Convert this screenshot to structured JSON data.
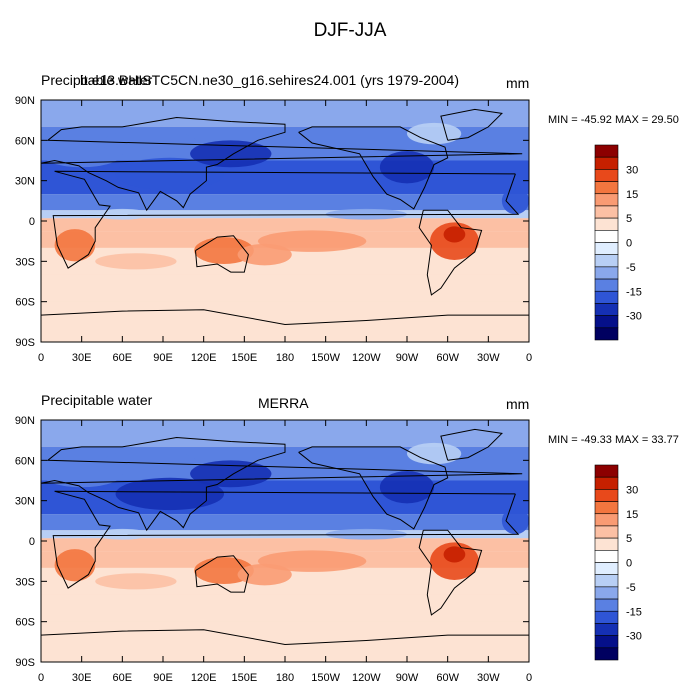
{
  "figure_title": "DJF-JJA",
  "colorbar": {
    "levels": [
      "30",
      "15",
      "5",
      "0",
      "-5",
      "-15",
      "-30"
    ],
    "colors": [
      "#8c0000",
      "#c62000",
      "#e8491b",
      "#f3763f",
      "#f99b73",
      "#fcc0a4",
      "#fde3d3",
      "#ffffff",
      "#e0eeff",
      "#b8cff5",
      "#8aa8ec",
      "#5a80e2",
      "#2f55d6",
      "#1530b4",
      "#05108a",
      "#000060"
    ]
  },
  "chart_data": [
    {
      "type": "heatmap",
      "left_title": "Precipitable water",
      "center_title": "b.e13.BHISTC5CN.ne30_g16.sehires24.001 (yrs 1979-2004)",
      "units": "mm",
      "min_max_text": "MIN = -45.92 MAX =  29.50",
      "min": -45.92,
      "max": 29.5,
      "x_ticks": [
        "0",
        "30E",
        "60E",
        "90E",
        "120E",
        "150E",
        "180",
        "150W",
        "120W",
        "90W",
        "60W",
        "30W",
        "0"
      ],
      "y_ticks": [
        "90N",
        "60N",
        "30N",
        "0",
        "30S",
        "60S",
        "90S"
      ],
      "xlim": [
        0,
        360
      ],
      "ylim": [
        -90,
        90
      ]
    },
    {
      "type": "heatmap",
      "left_title": "Precipitable water",
      "center_title": "MERRA",
      "units": "mm",
      "min_max_text": "MIN = -49.33 MAX =  33.77",
      "min": -49.33,
      "max": 33.77,
      "x_ticks": [
        "0",
        "30E",
        "60E",
        "90E",
        "120E",
        "150E",
        "180",
        "150W",
        "120W",
        "90W",
        "60W",
        "30W",
        "0"
      ],
      "y_ticks": [
        "90N",
        "60N",
        "30N",
        "0",
        "30S",
        "60S",
        "90S"
      ],
      "xlim": [
        0,
        360
      ],
      "ylim": [
        -90,
        90
      ]
    }
  ]
}
